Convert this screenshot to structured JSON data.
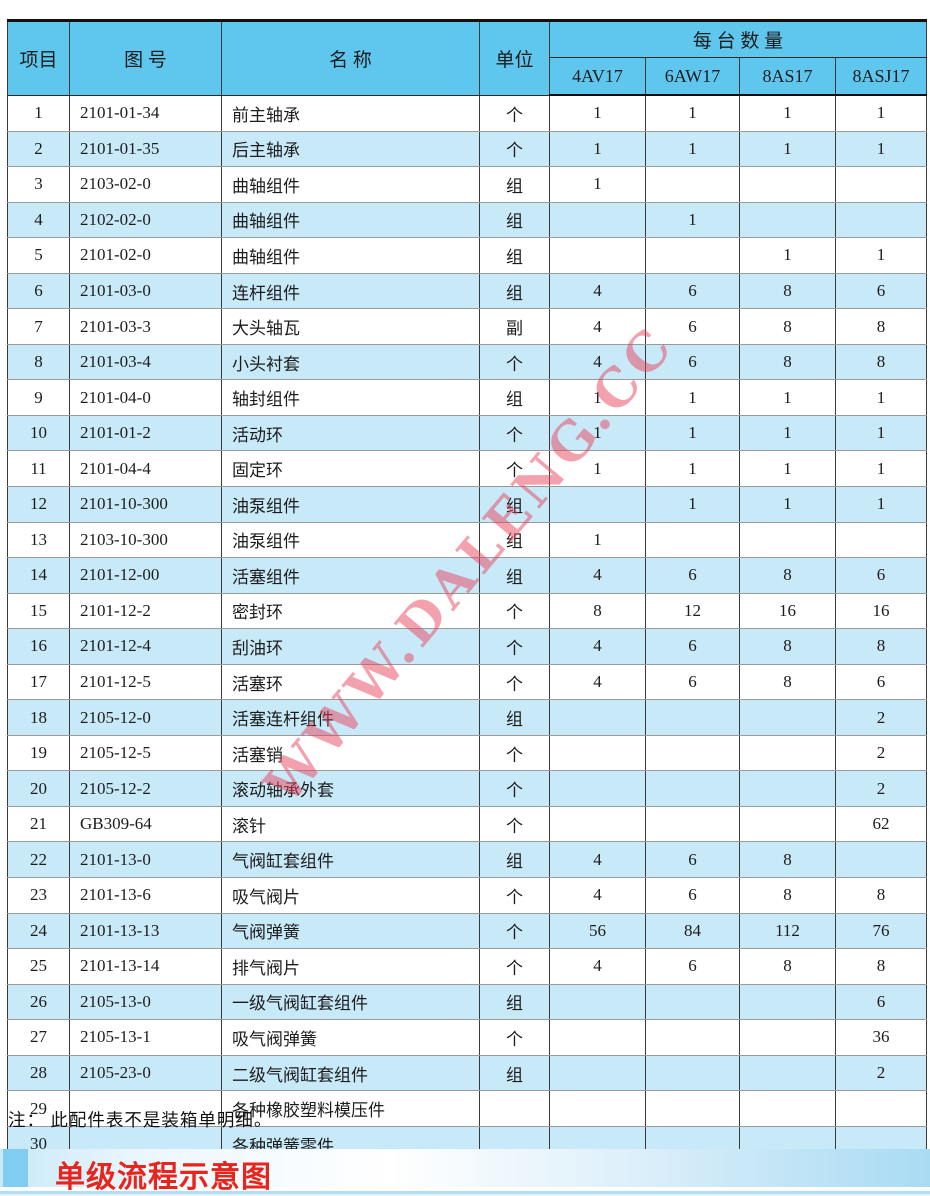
{
  "table": {
    "headers": {
      "item": "项目",
      "drawing_no": "图  号",
      "name": "名  称",
      "unit": "单位",
      "qty_group": "每 台 数 量",
      "models": [
        "4AV17",
        "6AW17",
        "8AS17",
        "8ASJ17"
      ]
    },
    "rows": [
      {
        "item": "1",
        "drawing_no": "2101-01-34",
        "name": "前主轴承",
        "unit": "个",
        "qty": [
          "1",
          "1",
          "1",
          "1"
        ]
      },
      {
        "item": "2",
        "drawing_no": "2101-01-35",
        "name": "后主轴承",
        "unit": "个",
        "qty": [
          "1",
          "1",
          "1",
          "1"
        ]
      },
      {
        "item": "3",
        "drawing_no": "2103-02-0",
        "name": "曲轴组件",
        "unit": "组",
        "qty": [
          "1",
          "",
          "",
          ""
        ]
      },
      {
        "item": "4",
        "drawing_no": "2102-02-0",
        "name": "曲轴组件",
        "unit": "组",
        "qty": [
          "",
          "1",
          "",
          ""
        ]
      },
      {
        "item": "5",
        "drawing_no": "2101-02-0",
        "name": "曲轴组件",
        "unit": "组",
        "qty": [
          "",
          "",
          "1",
          "1"
        ]
      },
      {
        "item": "6",
        "drawing_no": "2101-03-0",
        "name": "连杆组件",
        "unit": "组",
        "qty": [
          "4",
          "6",
          "8",
          "6"
        ]
      },
      {
        "item": "7",
        "drawing_no": "2101-03-3",
        "name": "大头轴瓦",
        "unit": "副",
        "qty": [
          "4",
          "6",
          "8",
          "8"
        ]
      },
      {
        "item": "8",
        "drawing_no": "2101-03-4",
        "name": "小头衬套",
        "unit": "个",
        "qty": [
          "4",
          "6",
          "8",
          "8"
        ]
      },
      {
        "item": "9",
        "drawing_no": "2101-04-0",
        "name": "轴封组件",
        "unit": "组",
        "qty": [
          "1",
          "1",
          "1",
          "1"
        ]
      },
      {
        "item": "10",
        "drawing_no": "2101-01-2",
        "name": "活动环",
        "unit": "个",
        "qty": [
          "1",
          "1",
          "1",
          "1"
        ]
      },
      {
        "item": "11",
        "drawing_no": "2101-04-4",
        "name": "固定环",
        "unit": "个",
        "qty": [
          "1",
          "1",
          "1",
          "1"
        ]
      },
      {
        "item": "12",
        "drawing_no": "2101-10-300",
        "name": "油泵组件",
        "unit": "组",
        "qty": [
          "",
          "1",
          "1",
          "1"
        ]
      },
      {
        "item": "13",
        "drawing_no": "2103-10-300",
        "name": "油泵组件",
        "unit": "组",
        "qty": [
          "1",
          "",
          "",
          ""
        ]
      },
      {
        "item": "14",
        "drawing_no": "2101-12-00",
        "name": "活塞组件",
        "unit": "组",
        "qty": [
          "4",
          "6",
          "8",
          "6"
        ]
      },
      {
        "item": "15",
        "drawing_no": "2101-12-2",
        "name": "密封环",
        "unit": "个",
        "qty": [
          "8",
          "12",
          "16",
          "16"
        ]
      },
      {
        "item": "16",
        "drawing_no": "2101-12-4",
        "name": "刮油环",
        "unit": "个",
        "qty": [
          "4",
          "6",
          "8",
          "8"
        ]
      },
      {
        "item": "17",
        "drawing_no": "2101-12-5",
        "name": "活塞环",
        "unit": "个",
        "qty": [
          "4",
          "6",
          "8",
          "6"
        ]
      },
      {
        "item": "18",
        "drawing_no": "2105-12-0",
        "name": "活塞连杆组件",
        "unit": "组",
        "qty": [
          "",
          "",
          "",
          "2"
        ]
      },
      {
        "item": "19",
        "drawing_no": "2105-12-5",
        "name": "活塞销",
        "unit": "个",
        "qty": [
          "",
          "",
          "",
          "2"
        ]
      },
      {
        "item": "20",
        "drawing_no": "2105-12-2",
        "name": "滚动轴承外套",
        "unit": "个",
        "qty": [
          "",
          "",
          "",
          "2"
        ]
      },
      {
        "item": "21",
        "drawing_no": "GB309-64",
        "name": "滚针",
        "unit": "个",
        "qty": [
          "",
          "",
          "",
          "62"
        ]
      },
      {
        "item": "22",
        "drawing_no": "2101-13-0",
        "name": "气阀缸套组件",
        "unit": "组",
        "qty": [
          "4",
          "6",
          "8",
          ""
        ]
      },
      {
        "item": "23",
        "drawing_no": "2101-13-6",
        "name": "吸气阀片",
        "unit": "个",
        "qty": [
          "4",
          "6",
          "8",
          "8"
        ]
      },
      {
        "item": "24",
        "drawing_no": "2101-13-13",
        "name": "气阀弹簧",
        "unit": "个",
        "qty": [
          "56",
          "84",
          "112",
          "76"
        ]
      },
      {
        "item": "25",
        "drawing_no": "2101-13-14",
        "name": "排气阀片",
        "unit": "个",
        "qty": [
          "4",
          "6",
          "8",
          "8"
        ]
      },
      {
        "item": "26",
        "drawing_no": "2105-13-0",
        "name": "一级气阀缸套组件",
        "unit": "组",
        "qty": [
          "",
          "",
          "",
          "6"
        ]
      },
      {
        "item": "27",
        "drawing_no": "2105-13-1",
        "name": "吸气阀弹簧",
        "unit": "个",
        "qty": [
          "",
          "",
          "",
          "36"
        ]
      },
      {
        "item": "28",
        "drawing_no": "2105-23-0",
        "name": "二级气阀缸套组件",
        "unit": "组",
        "qty": [
          "",
          "",
          "",
          "2"
        ]
      },
      {
        "item": "29",
        "drawing_no": "",
        "name": "各种橡胶塑料模压件",
        "unit": "",
        "qty": [
          "",
          "",
          "",
          ""
        ]
      },
      {
        "item": "30",
        "drawing_no": "",
        "name": "各种弹簧零件",
        "unit": "",
        "qty": [
          "",
          "",
          "",
          ""
        ]
      }
    ]
  },
  "watermark": "WWW.DALENG.CC",
  "note": "注： 此配件表不是装箱单明细。",
  "section_title": "单级流程示意图",
  "colors": {
    "header_blue": "#5fc6ee",
    "stripe_blue": "#c8e9f8",
    "title_red": "#e8241d",
    "watermark_pink": "#e9445e",
    "band_square_blue": "#7fcdf1"
  }
}
